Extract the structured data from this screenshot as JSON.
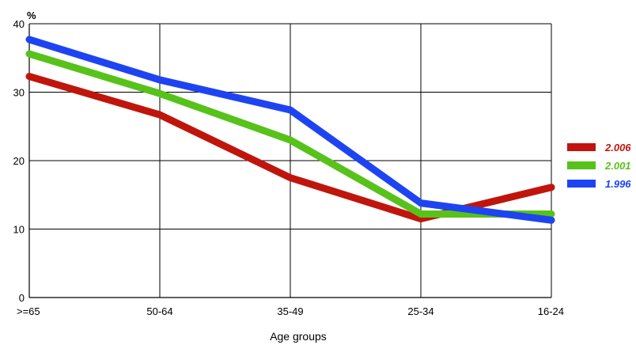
{
  "chart_data": {
    "type": "line",
    "ylabel": "%",
    "xlabel": "Age groups",
    "categories": [
      ">=65",
      "50-64",
      "35-49",
      "25-34",
      "16-24"
    ],
    "ylim": [
      0,
      40
    ],
    "yticks": [
      "0",
      "10",
      "20",
      "30",
      "40"
    ],
    "grid": true,
    "legend_position": "right",
    "series": [
      {
        "name": "2.006",
        "color": "#c0150c",
        "values": [
          32.3,
          26.7,
          17.5,
          11.5,
          16.1
        ]
      },
      {
        "name": "2.001",
        "color": "#57c21a",
        "values": [
          35.6,
          29.8,
          23.0,
          12.2,
          12.2
        ]
      },
      {
        "name": "1.996",
        "color": "#1e44f2",
        "values": [
          37.7,
          31.8,
          27.4,
          13.8,
          11.3
        ]
      }
    ]
  }
}
